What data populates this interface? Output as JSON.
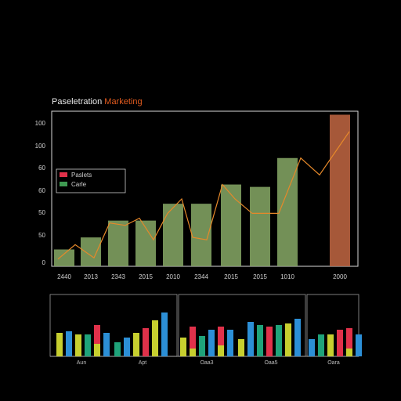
{
  "title": {
    "part1": "Paseletration",
    "part2": "Marketing"
  },
  "colors": {
    "bar": "#7fa061",
    "last_bar": "#b8623f",
    "line": "#e6892a",
    "title_accent": "#e05a1e"
  },
  "chart_data": [
    {
      "type": "bar",
      "categories": [
        "2440",
        "2013",
        "2343",
        "2015",
        "2010",
        "2344",
        "2015",
        "2015",
        "1010",
        "2000"
      ],
      "values": [
        14,
        24,
        38,
        38,
        52,
        52,
        68,
        66,
        90,
        126
      ],
      "last_bar_value": 126,
      "line_values": [
        6,
        18,
        7,
        36,
        34,
        40,
        22,
        10,
        52,
        55,
        44,
        44,
        90,
        70,
        90,
        110
      ],
      "y_ticks": [
        "0",
        "50",
        "50",
        "60",
        "60",
        "60",
        "100",
        "100"
      ],
      "ylim": [
        0,
        125
      ],
      "legend": [
        {
          "label": "Paslets",
          "color": "#e0314a"
        },
        {
          "label": "Carle",
          "color": "#3f9a52"
        }
      ],
      "legend_position": "left"
    },
    {
      "type": "bar",
      "panels": [
        {
          "label": "Aun",
          "values": [
            30,
            32,
            28,
            14,
            18,
            30,
            26,
            28,
            38,
            54,
            60,
            55
          ],
          "colors": [
            "#c7cf2f",
            "#2c8fd6",
            "#c7cf2f",
            "#e0314a",
            "#c7cf2f",
            "#2c8fd6",
            "#1fa37a",
            "#c7cf2f",
            "#1fa37a",
            "#2c8fd6",
            "#c7cf2f",
            "#2c8fd6"
          ],
          "segments": [
            {
              "label": "Aun",
              "bars": [
                30,
                32,
                28,
                14,
                18,
                30
              ]
            },
            {
              "label": "Apt",
              "bars": [
                20,
                24,
                34,
                42,
                48,
                56
              ]
            }
          ]
        },
        {
          "label": "Oaa3",
          "values": [
            24,
            38,
            26,
            40,
            30,
            36
          ],
          "colors": [
            "#c7cf2f",
            "#e0314a",
            "#1fa37a",
            "#e0314a",
            "#2c8fd6",
            "#c7cf2f"
          ]
        },
        {
          "label": "Oaa5",
          "values": [
            28,
            44,
            40,
            38,
            44,
            48,
            42
          ],
          "colors": [
            "#2c8fd6",
            "#1fa37a",
            "#e0314a",
            "#c7cf2f",
            "#1fa37a",
            "#2c8fd6",
            "#c7cf2f"
          ]
        },
        {
          "label": "Oara",
          "values": [
            22,
            30,
            28,
            34,
            36,
            28
          ],
          "colors": [
            "#1fa37a",
            "#2c8fd6",
            "#c7cf2f",
            "#e0314a",
            "#e0314a",
            "#2c8fd6"
          ]
        }
      ]
    }
  ]
}
